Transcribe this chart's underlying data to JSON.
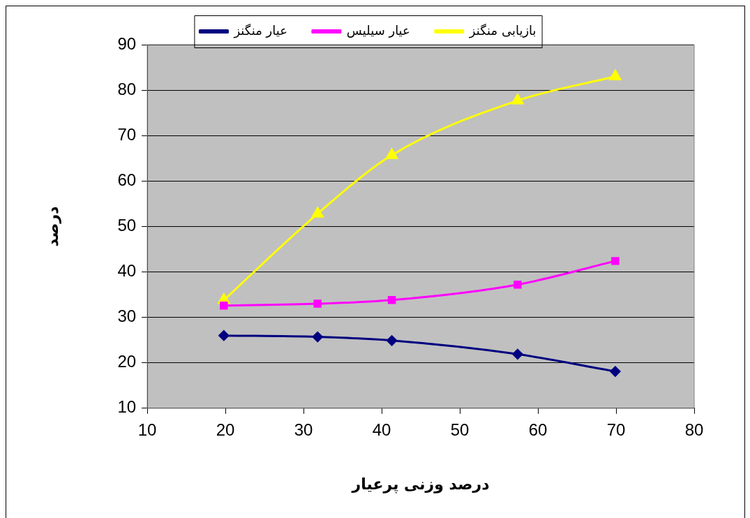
{
  "chart_data": {
    "type": "line",
    "xlabel": "درصد وزنی پرعیار",
    "ylabel": "درصد",
    "xlim": [
      10,
      80
    ],
    "xticks": [
      10,
      20,
      30,
      40,
      50,
      60,
      70,
      80
    ],
    "ylim": [
      10,
      90
    ],
    "yticks": [
      10,
      20,
      30,
      40,
      50,
      60,
      70,
      80,
      90
    ],
    "grid": "y",
    "legend": "top",
    "series": [
      {
        "name": "عیار منگنز",
        "color": "#000080",
        "marker": "diamond",
        "x": [
          19.8,
          31.8,
          41.3,
          57.4,
          69.9
        ],
        "values": [
          26.0,
          25.7,
          24.9,
          21.9,
          18.1
        ]
      },
      {
        "name": "عیار سیلیس",
        "color": "#ff00ff",
        "marker": "square",
        "x": [
          19.8,
          31.8,
          41.3,
          57.4,
          69.9
        ],
        "values": [
          32.6,
          33.0,
          33.8,
          37.2,
          42.4
        ]
      },
      {
        "name": "بازیابی منگنز",
        "color": "#ffff00",
        "marker": "triangle",
        "x": [
          19.8,
          31.8,
          41.3,
          57.4,
          69.9
        ],
        "values": [
          33.8,
          52.8,
          65.7,
          77.7,
          83.0
        ]
      }
    ]
  }
}
